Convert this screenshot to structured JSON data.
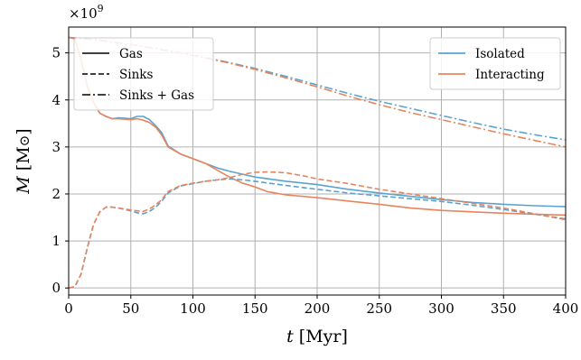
{
  "chart_data": {
    "type": "line",
    "xlabel": "t [Myr]",
    "ylabel": "M [M⊙]",
    "y_multiplier_label": "×10^9",
    "xlim": [
      0,
      400
    ],
    "ylim": [
      -0.15,
      5.55
    ],
    "x_ticks": [
      0,
      50,
      100,
      150,
      200,
      250,
      300,
      350,
      400
    ],
    "y_ticks": [
      0,
      1,
      2,
      3,
      4,
      5
    ],
    "grid": true,
    "linestyle_legend": {
      "placement": "upper left",
      "entries": [
        {
          "label": "Gas",
          "dash": "solid"
        },
        {
          "label": "Sinks",
          "dash": "dashed"
        },
        {
          "label": "Sinks + Gas",
          "dash": "dashdot"
        }
      ]
    },
    "color_legend": {
      "placement": "upper right",
      "entries": [
        {
          "label": "Isolated",
          "color": "#5ba3cf"
        },
        {
          "label": "Interacting",
          "color": "#e8845c"
        }
      ]
    },
    "series": [
      {
        "legend": "Isolated",
        "component": "Gas",
        "color": "#5ba3cf",
        "dash": "solid",
        "points": [
          [
            0,
            5.33
          ],
          [
            5,
            5.3
          ],
          [
            10,
            4.85
          ],
          [
            15,
            4.3
          ],
          [
            20,
            3.95
          ],
          [
            25,
            3.72
          ],
          [
            30,
            3.65
          ],
          [
            35,
            3.6
          ],
          [
            40,
            3.62
          ],
          [
            50,
            3.6
          ],
          [
            55,
            3.65
          ],
          [
            60,
            3.65
          ],
          [
            65,
            3.58
          ],
          [
            70,
            3.45
          ],
          [
            75,
            3.3
          ],
          [
            80,
            3.02
          ],
          [
            90,
            2.85
          ],
          [
            100,
            2.75
          ],
          [
            110,
            2.65
          ],
          [
            120,
            2.55
          ],
          [
            130,
            2.48
          ],
          [
            140,
            2.42
          ],
          [
            150,
            2.36
          ],
          [
            175,
            2.27
          ],
          [
            200,
            2.2
          ],
          [
            225,
            2.1
          ],
          [
            250,
            2.02
          ],
          [
            275,
            1.95
          ],
          [
            300,
            1.88
          ],
          [
            325,
            1.82
          ],
          [
            350,
            1.78
          ],
          [
            375,
            1.75
          ],
          [
            400,
            1.73
          ]
        ]
      },
      {
        "legend": "Interacting",
        "component": "Gas",
        "color": "#e8845c",
        "dash": "solid",
        "points": [
          [
            0,
            5.33
          ],
          [
            5,
            5.3
          ],
          [
            10,
            4.85
          ],
          [
            15,
            4.3
          ],
          [
            20,
            3.95
          ],
          [
            25,
            3.72
          ],
          [
            30,
            3.65
          ],
          [
            35,
            3.6
          ],
          [
            40,
            3.6
          ],
          [
            50,
            3.58
          ],
          [
            55,
            3.6
          ],
          [
            60,
            3.57
          ],
          [
            65,
            3.52
          ],
          [
            70,
            3.42
          ],
          [
            75,
            3.25
          ],
          [
            80,
            3.0
          ],
          [
            90,
            2.85
          ],
          [
            100,
            2.75
          ],
          [
            110,
            2.65
          ],
          [
            120,
            2.5
          ],
          [
            130,
            2.35
          ],
          [
            140,
            2.23
          ],
          [
            150,
            2.15
          ],
          [
            160,
            2.05
          ],
          [
            175,
            1.98
          ],
          [
            200,
            1.92
          ],
          [
            225,
            1.85
          ],
          [
            250,
            1.78
          ],
          [
            275,
            1.7
          ],
          [
            300,
            1.65
          ],
          [
            325,
            1.62
          ],
          [
            350,
            1.59
          ],
          [
            375,
            1.57
          ],
          [
            400,
            1.55
          ]
        ]
      },
      {
        "legend": "Isolated",
        "component": "Sinks",
        "color": "#5ba3cf",
        "dash": "dashed",
        "points": [
          [
            0,
            0
          ],
          [
            5,
            0.03
          ],
          [
            10,
            0.3
          ],
          [
            15,
            0.85
          ],
          [
            20,
            1.35
          ],
          [
            25,
            1.62
          ],
          [
            30,
            1.72
          ],
          [
            35,
            1.72
          ],
          [
            40,
            1.7
          ],
          [
            50,
            1.64
          ],
          [
            55,
            1.6
          ],
          [
            60,
            1.58
          ],
          [
            65,
            1.63
          ],
          [
            70,
            1.72
          ],
          [
            75,
            1.85
          ],
          [
            80,
            2.02
          ],
          [
            90,
            2.17
          ],
          [
            100,
            2.22
          ],
          [
            110,
            2.27
          ],
          [
            120,
            2.3
          ],
          [
            130,
            2.32
          ],
          [
            140,
            2.3
          ],
          [
            150,
            2.27
          ],
          [
            175,
            2.18
          ],
          [
            200,
            2.1
          ],
          [
            225,
            2.02
          ],
          [
            250,
            1.96
          ],
          [
            275,
            1.9
          ],
          [
            300,
            1.84
          ],
          [
            325,
            1.76
          ],
          [
            350,
            1.67
          ],
          [
            375,
            1.57
          ],
          [
            400,
            1.47
          ]
        ]
      },
      {
        "legend": "Interacting",
        "component": "Sinks",
        "color": "#e8845c",
        "dash": "dashed",
        "points": [
          [
            0,
            0
          ],
          [
            5,
            0.03
          ],
          [
            10,
            0.3
          ],
          [
            15,
            0.85
          ],
          [
            20,
            1.35
          ],
          [
            25,
            1.62
          ],
          [
            30,
            1.72
          ],
          [
            35,
            1.72
          ],
          [
            40,
            1.7
          ],
          [
            50,
            1.66
          ],
          [
            55,
            1.64
          ],
          [
            60,
            1.63
          ],
          [
            65,
            1.68
          ],
          [
            70,
            1.77
          ],
          [
            75,
            1.88
          ],
          [
            80,
            2.05
          ],
          [
            90,
            2.18
          ],
          [
            100,
            2.23
          ],
          [
            110,
            2.27
          ],
          [
            120,
            2.3
          ],
          [
            130,
            2.35
          ],
          [
            140,
            2.42
          ],
          [
            150,
            2.46
          ],
          [
            160,
            2.47
          ],
          [
            175,
            2.45
          ],
          [
            190,
            2.38
          ],
          [
            200,
            2.32
          ],
          [
            225,
            2.22
          ],
          [
            250,
            2.1
          ],
          [
            275,
            2.0
          ],
          [
            300,
            1.9
          ],
          [
            325,
            1.8
          ],
          [
            350,
            1.7
          ],
          [
            375,
            1.58
          ],
          [
            400,
            1.45
          ]
        ]
      },
      {
        "legend": "Isolated",
        "component": "Sinks + Gas",
        "color": "#5ba3cf",
        "dash": "dashdot",
        "points": [
          [
            0,
            5.33
          ],
          [
            25,
            5.27
          ],
          [
            50,
            5.18
          ],
          [
            75,
            5.07
          ],
          [
            100,
            4.95
          ],
          [
            125,
            4.82
          ],
          [
            150,
            4.67
          ],
          [
            175,
            4.5
          ],
          [
            200,
            4.32
          ],
          [
            225,
            4.14
          ],
          [
            250,
            3.97
          ],
          [
            275,
            3.82
          ],
          [
            300,
            3.67
          ],
          [
            325,
            3.52
          ],
          [
            350,
            3.38
          ],
          [
            375,
            3.26
          ],
          [
            400,
            3.15
          ]
        ]
      },
      {
        "legend": "Interacting",
        "component": "Sinks + Gas",
        "color": "#e8845c",
        "dash": "dashdot",
        "points": [
          [
            0,
            5.33
          ],
          [
            25,
            5.27
          ],
          [
            50,
            5.18
          ],
          [
            75,
            5.07
          ],
          [
            100,
            4.95
          ],
          [
            125,
            4.81
          ],
          [
            150,
            4.65
          ],
          [
            175,
            4.47
          ],
          [
            200,
            4.28
          ],
          [
            225,
            4.08
          ],
          [
            250,
            3.9
          ],
          [
            275,
            3.73
          ],
          [
            300,
            3.58
          ],
          [
            325,
            3.43
          ],
          [
            350,
            3.28
          ],
          [
            375,
            3.14
          ],
          [
            400,
            3.0
          ]
        ]
      }
    ]
  }
}
